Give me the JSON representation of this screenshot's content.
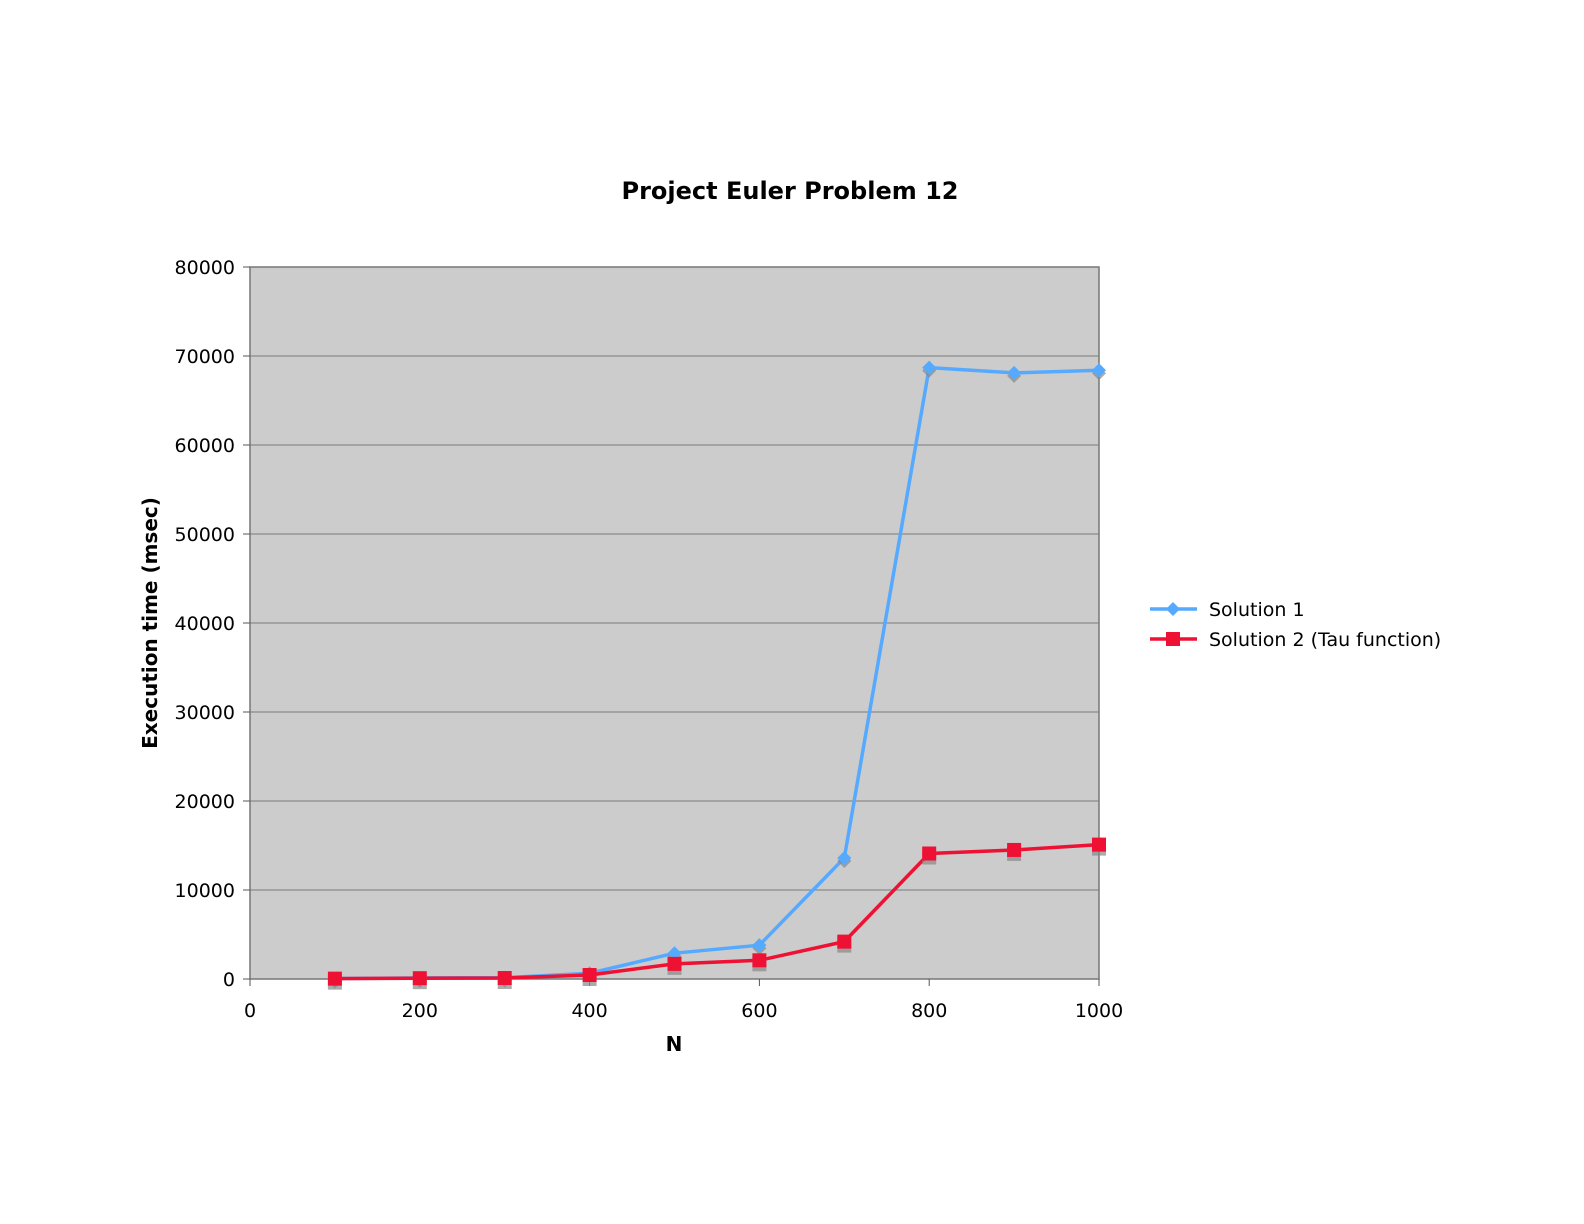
{
  "chart_data": {
    "type": "line",
    "title": "Project Euler Problem 12",
    "xlabel": "N",
    "ylabel": "Execution time (msec)",
    "xlim": [
      0,
      1000
    ],
    "ylim": [
      0,
      80000
    ],
    "x_ticks": [
      "0",
      "200",
      "400",
      "600",
      "800",
      "1000"
    ],
    "y_ticks": [
      "0",
      "10000",
      "20000",
      "30000",
      "40000",
      "50000",
      "60000",
      "70000",
      "80000"
    ],
    "grid": true,
    "legend_position": "right",
    "plot_background": "#cccccc",
    "x": [
      100,
      200,
      300,
      400,
      500,
      600,
      700,
      800,
      900,
      1000
    ],
    "series": [
      {
        "name": "Solution 1",
        "color": "#55aaff",
        "marker": "diamond",
        "values": [
          50,
          120,
          150,
          650,
          2900,
          3800,
          13600,
          68700,
          68100,
          68400
        ]
      },
      {
        "name": "Solution 2 (Tau function)",
        "color": "#ee1133",
        "marker": "square",
        "values": [
          40,
          90,
          110,
          450,
          1700,
          2100,
          4200,
          14100,
          14500,
          15100
        ]
      }
    ]
  }
}
